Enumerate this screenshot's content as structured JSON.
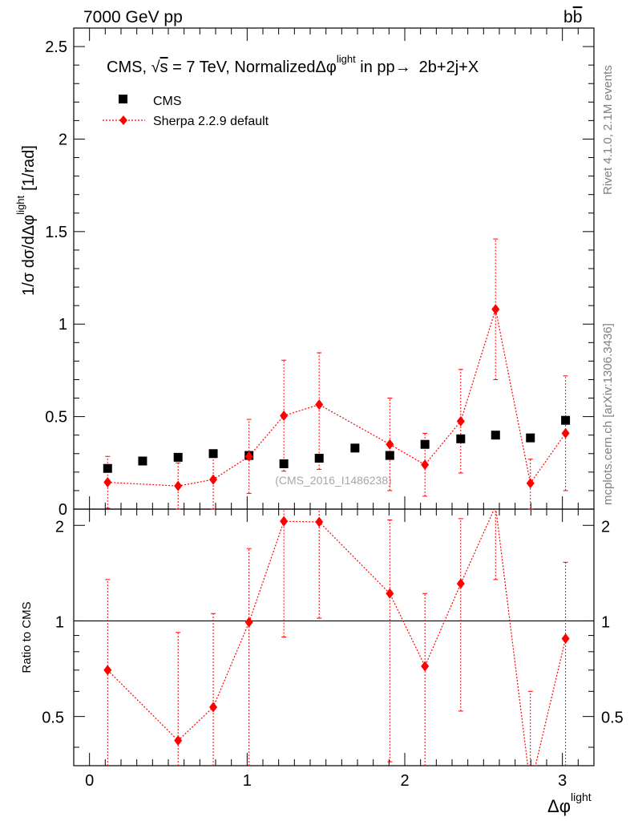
{
  "header": {
    "left": "7000 GeV pp",
    "right": "b",
    "right_bar": "b"
  },
  "side_labels": {
    "rivet": "Rivet 4.1.0,  2.1M events",
    "mcplots": "mcplots.cern.ch [arXiv:1306.3436]"
  },
  "chart_data": [
    {
      "panel": "main",
      "type": "scatter",
      "title": "CMS, √s = 7 TeV, Normalized Δφ^light in pp → 2b+2j+X",
      "title_parts": {
        "a": "CMS, ",
        "sqrt": "√",
        "s": "s",
        "b": " = 7 TeV, Normalized",
        "phi": "Δφ",
        "sup": "light",
        "c": " in pp",
        "arrow": "→",
        "d": "2b+2j+X"
      },
      "ylabel": "1/σ dσ/dΔφ^light [1/rad]",
      "ylabel_parts": {
        "main": "1/σ dσ/dΔφ",
        "sup": "light",
        "unit": "[1/rad]"
      },
      "watermark": "(CMS_2016_I1486238)",
      "xlim": [
        -0.1,
        3.2
      ],
      "ylim": [
        0,
        2.6
      ],
      "yticks": [
        0,
        0.5,
        1,
        1.5,
        2,
        2.5
      ],
      "ytick_labels": [
        "0",
        "0.5",
        "1",
        "1.5",
        "2",
        "2.5"
      ],
      "series": [
        {
          "name": "CMS",
          "marker": "square",
          "color": "#000000",
          "x": [
            0.115,
            0.337,
            0.562,
            0.785,
            1.012,
            1.233,
            1.457,
            1.684,
            1.905,
            2.128,
            2.355,
            2.576,
            2.797,
            3.02
          ],
          "y": [
            0.22,
            0.26,
            0.28,
            0.3,
            0.29,
            0.245,
            0.275,
            0.33,
            0.29,
            0.35,
            0.38,
            0.4,
            0.385,
            0.48
          ]
        },
        {
          "name": "Sherpa 2.2.9 default",
          "marker": "diamond",
          "color": "#ff0000",
          "x": [
            0.115,
            0.562,
            0.785,
            1.012,
            1.233,
            1.457,
            1.905,
            2.128,
            2.355,
            2.576,
            2.797,
            3.02
          ],
          "y": [
            0.145,
            0.125,
            0.16,
            0.285,
            0.505,
            0.565,
            0.35,
            0.24,
            0.475,
            1.08,
            0.14,
            0.41
          ],
          "err_low": [
            0.14,
            0.125,
            0.16,
            0.2,
            0.3,
            0.35,
            0.25,
            0.17,
            0.28,
            0.38,
            0.14,
            0.31
          ],
          "err_high": [
            0.14,
            0.125,
            0.16,
            0.2,
            0.3,
            0.28,
            0.25,
            0.17,
            0.28,
            0.38,
            0.13,
            0.31
          ]
        }
      ]
    },
    {
      "panel": "ratio",
      "type": "line",
      "ylabel": "Ratio to CMS",
      "xlabel": "Δφ^light",
      "xlabel_parts": {
        "main": "Δφ",
        "sup": "light"
      },
      "xlim": [
        -0.1,
        3.2
      ],
      "ylim": [
        0.35,
        2.25
      ],
      "xticks": [
        0,
        1,
        2,
        3
      ],
      "xtick_labels": [
        "0",
        "1",
        "2",
        "3"
      ],
      "yticks": [
        0.5,
        1,
        2
      ],
      "ytick_labels": [
        "0.5",
        "1",
        "2"
      ],
      "reference": 1,
      "series": [
        {
          "name": "Sherpa 2.2.9 default / CMS",
          "color": "#ff0000",
          "x": [
            0.115,
            0.562,
            0.785,
            1.012,
            1.233,
            1.457,
            1.905,
            2.128,
            2.355,
            2.576,
            2.797,
            3.02
          ],
          "y": [
            0.7,
            0.42,
            0.535,
            0.99,
            2.06,
            2.05,
            1.22,
            0.72,
            1.31,
            2.3,
            0.3,
            0.88
          ],
          "err_low": [
            0.65,
            0.42,
            0.535,
            0.7,
            1.17,
            1.03,
            0.86,
            0.5,
            0.79,
            0.95,
            0.3,
            0.65
          ],
          "err_high": [
            0.65,
            0.5,
            0.52,
            0.7,
            1.17,
            1.03,
            0.86,
            0.5,
            0.79,
            0.95,
            0.3,
            0.65
          ]
        }
      ]
    }
  ]
}
